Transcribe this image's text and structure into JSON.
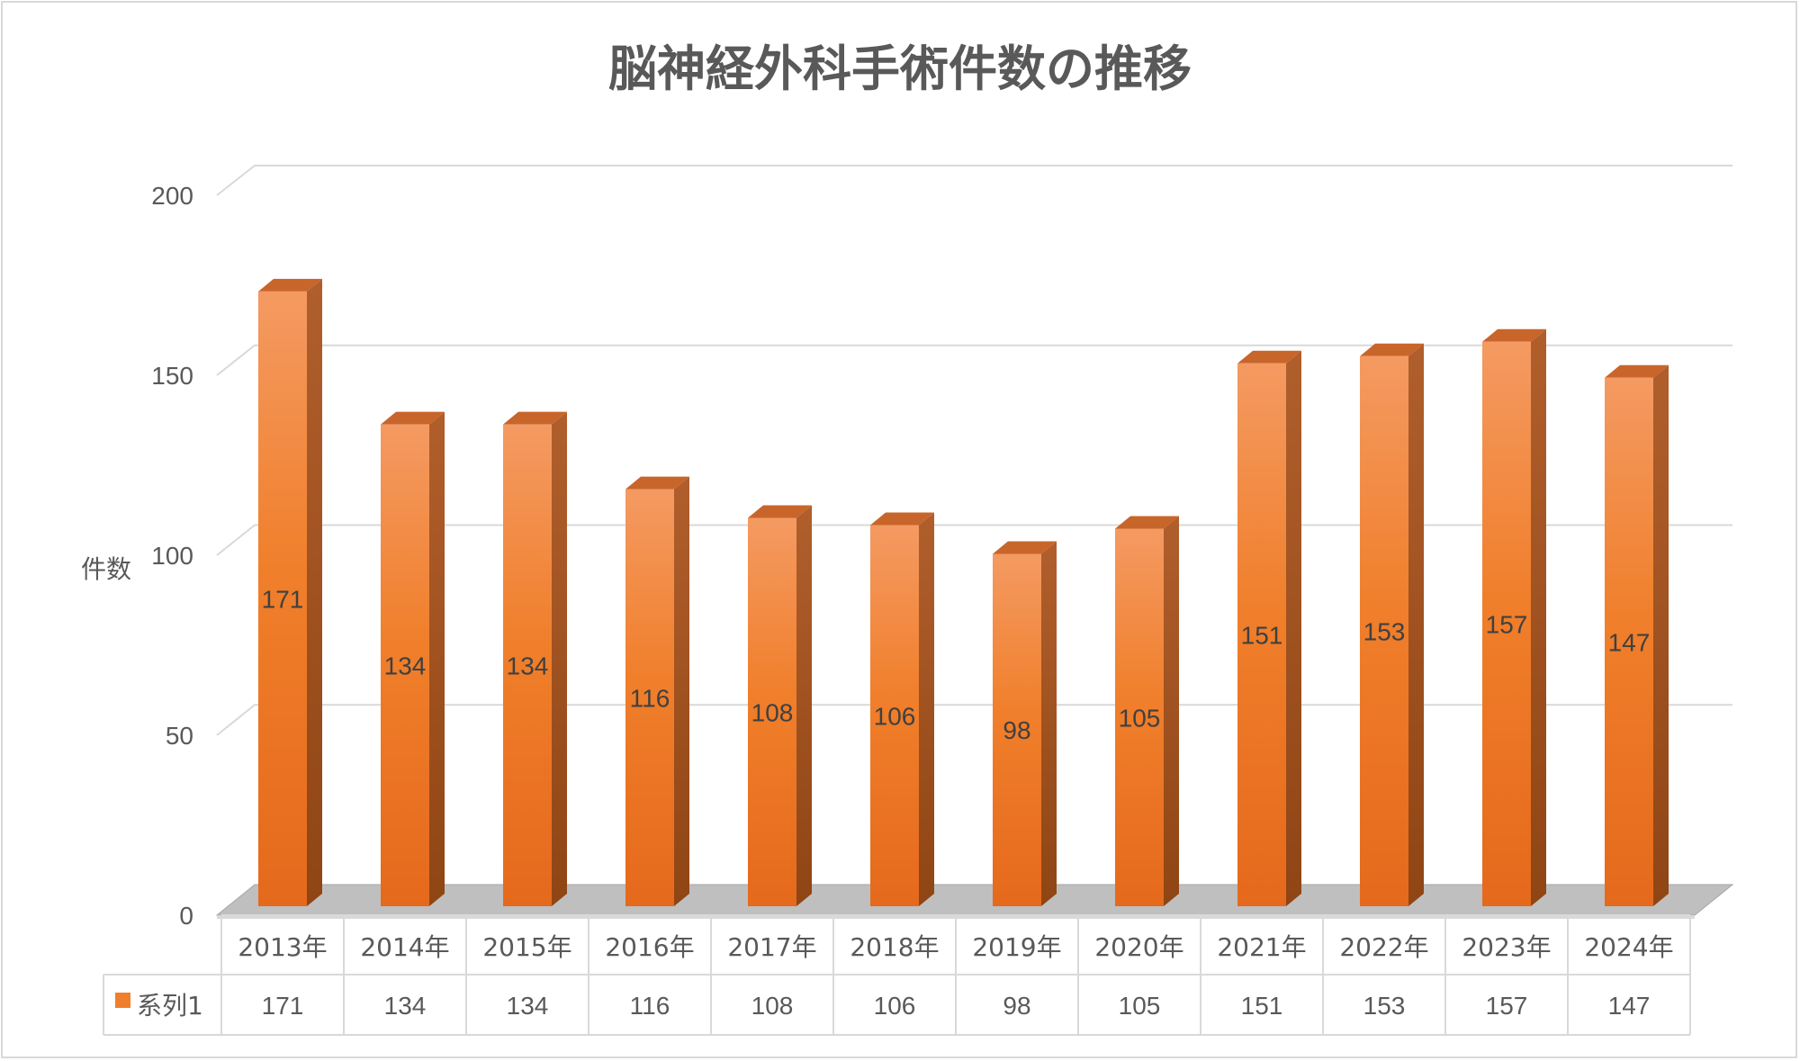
{
  "chart_data": {
    "type": "bar",
    "title": "脳神経外科手術件数の推移",
    "ylabel": "件数",
    "xlabel": "",
    "categories": [
      "2013年",
      "2014年",
      "2015年",
      "2016年",
      "2017年",
      "2018年",
      "2019年",
      "2020年",
      "2021年",
      "2022年",
      "2023年",
      "2024年"
    ],
    "series": [
      {
        "name": "系列1",
        "values": [
          171,
          134,
          134,
          116,
          108,
          106,
          98,
          105,
          151,
          153,
          157,
          147
        ]
      }
    ],
    "ylim": [
      0,
      200
    ],
    "yticks": [
      0,
      50,
      100,
      150,
      200
    ],
    "grid": true,
    "style": "3d-column",
    "data_labels": true,
    "data_table": true,
    "colors": {
      "bar": "#f07f2b",
      "bar_light": "#f4a06a",
      "bar_side": "#a0521a",
      "bar_top": "#c8652a",
      "grid": "#d9d9d9",
      "text": "#595959"
    }
  }
}
